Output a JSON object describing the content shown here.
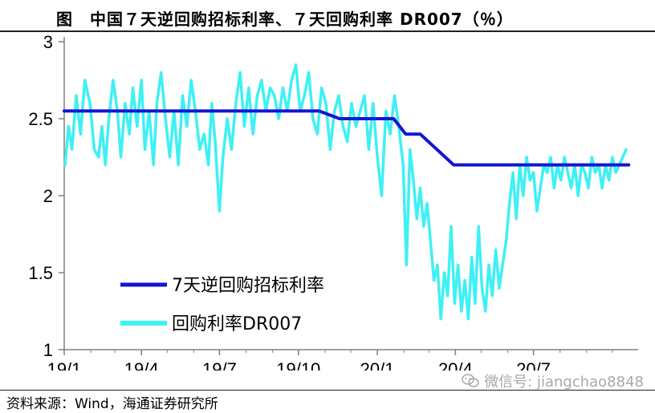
{
  "header": {
    "title": "图　中国７天逆回购招标利率、７天回购利率 DR007（％）"
  },
  "footer": {
    "source": "资料来源：Wind，海通证券研究所",
    "watermark": "微信号: jiangchao8848"
  },
  "colors": {
    "reverse_repo": "#1414d2",
    "dr007": "#3ff0f5",
    "axis": "#808080"
  },
  "chart_data": {
    "type": "line",
    "xlabel": "",
    "ylabel": "",
    "x_domain": [
      "2019-01-01",
      "2020-10-31"
    ],
    "ylim": [
      1,
      3
    ],
    "yticks": [
      "1",
      "1.5",
      "2",
      "2.5",
      "3"
    ],
    "xticks": [
      {
        "date": "2019-01-01",
        "label": "19/1"
      },
      {
        "date": "2019-04-01",
        "label": "19/4"
      },
      {
        "date": "2019-07-01",
        "label": "19/7"
      },
      {
        "date": "2019-10-01",
        "label": "19/10"
      },
      {
        "date": "2020-01-01",
        "label": "20/1"
      },
      {
        "date": "2020-04-01",
        "label": "20/4"
      },
      {
        "date": "2020-07-01",
        "label": "20/7"
      }
    ],
    "legend_position": "bottom-left",
    "series": [
      {
        "name": "7天逆回购招标利率",
        "points": [
          [
            "2019-01-01",
            2.55
          ],
          [
            "2019-10-25",
            2.55
          ],
          [
            "2019-11-18",
            2.5
          ],
          [
            "2020-01-20",
            2.5
          ],
          [
            "2020-02-03",
            2.4
          ],
          [
            "2020-02-20",
            2.4
          ],
          [
            "2020-03-30",
            2.2
          ],
          [
            "2020-10-20",
            2.2
          ]
        ]
      },
      {
        "name": "回购利率DR007",
        "points": [
          [
            "2019-01-02",
            2.2
          ],
          [
            "2019-01-06",
            2.45
          ],
          [
            "2019-01-10",
            2.3
          ],
          [
            "2019-01-15",
            2.65
          ],
          [
            "2019-01-20",
            2.4
          ],
          [
            "2019-01-25",
            2.75
          ],
          [
            "2019-01-31",
            2.6
          ],
          [
            "2019-02-05",
            2.3
          ],
          [
            "2019-02-10",
            2.25
          ],
          [
            "2019-02-14",
            2.45
          ],
          [
            "2019-02-18",
            2.2
          ],
          [
            "2019-02-22",
            2.5
          ],
          [
            "2019-02-27",
            2.75
          ],
          [
            "2019-03-04",
            2.55
          ],
          [
            "2019-03-08",
            2.25
          ],
          [
            "2019-03-13",
            2.6
          ],
          [
            "2019-03-18",
            2.4
          ],
          [
            "2019-03-22",
            2.7
          ],
          [
            "2019-03-27",
            2.45
          ],
          [
            "2019-04-01",
            2.75
          ],
          [
            "2019-04-05",
            2.3
          ],
          [
            "2019-04-10",
            2.55
          ],
          [
            "2019-04-15",
            2.2
          ],
          [
            "2019-04-19",
            2.6
          ],
          [
            "2019-04-24",
            2.8
          ],
          [
            "2019-04-29",
            2.5
          ],
          [
            "2019-05-04",
            2.25
          ],
          [
            "2019-05-09",
            2.55
          ],
          [
            "2019-05-14",
            2.2
          ],
          [
            "2019-05-19",
            2.65
          ],
          [
            "2019-05-24",
            2.45
          ],
          [
            "2019-05-29",
            2.75
          ],
          [
            "2019-06-03",
            2.55
          ],
          [
            "2019-06-08",
            2.3
          ],
          [
            "2019-06-13",
            2.4
          ],
          [
            "2019-06-18",
            2.2
          ],
          [
            "2019-06-22",
            2.6
          ],
          [
            "2019-06-26",
            2.35
          ],
          [
            "2019-07-01",
            1.9
          ],
          [
            "2019-07-05",
            2.25
          ],
          [
            "2019-07-10",
            2.5
          ],
          [
            "2019-07-15",
            2.3
          ],
          [
            "2019-07-20",
            2.6
          ],
          [
            "2019-07-25",
            2.8
          ],
          [
            "2019-07-30",
            2.45
          ],
          [
            "2019-08-04",
            2.7
          ],
          [
            "2019-08-09",
            2.4
          ],
          [
            "2019-08-14",
            2.65
          ],
          [
            "2019-08-19",
            2.75
          ],
          [
            "2019-08-24",
            2.55
          ],
          [
            "2019-08-29",
            2.7
          ],
          [
            "2019-09-03",
            2.65
          ],
          [
            "2019-09-08",
            2.5
          ],
          [
            "2019-09-13",
            2.7
          ],
          [
            "2019-09-18",
            2.55
          ],
          [
            "2019-09-23",
            2.75
          ],
          [
            "2019-09-28",
            2.85
          ],
          [
            "2019-10-03",
            2.55
          ],
          [
            "2019-10-08",
            2.65
          ],
          [
            "2019-10-13",
            2.8
          ],
          [
            "2019-10-18",
            2.5
          ],
          [
            "2019-10-23",
            2.4
          ],
          [
            "2019-10-28",
            2.7
          ],
          [
            "2019-11-02",
            2.6
          ],
          [
            "2019-11-07",
            2.3
          ],
          [
            "2019-11-12",
            2.55
          ],
          [
            "2019-11-17",
            2.65
          ],
          [
            "2019-11-22",
            2.45
          ],
          [
            "2019-11-27",
            2.35
          ],
          [
            "2019-12-02",
            2.6
          ],
          [
            "2019-12-07",
            2.45
          ],
          [
            "2019-12-12",
            2.55
          ],
          [
            "2019-12-17",
            2.65
          ],
          [
            "2019-12-22",
            2.3
          ],
          [
            "2019-12-27",
            2.6
          ],
          [
            "2020-01-01",
            2.25
          ],
          [
            "2020-01-06",
            2.0
          ],
          [
            "2020-01-11",
            2.55
          ],
          [
            "2020-01-16",
            2.4
          ],
          [
            "2020-01-21",
            2.65
          ],
          [
            "2020-01-26",
            2.45
          ],
          [
            "2020-01-31",
            2.2
          ],
          [
            "2020-02-04",
            1.55
          ],
          [
            "2020-02-08",
            2.3
          ],
          [
            "2020-02-12",
            2.1
          ],
          [
            "2020-02-16",
            1.85
          ],
          [
            "2020-02-20",
            2.05
          ],
          [
            "2020-02-24",
            1.8
          ],
          [
            "2020-02-28",
            1.95
          ],
          [
            "2020-03-03",
            1.7
          ],
          [
            "2020-03-07",
            1.45
          ],
          [
            "2020-03-11",
            1.55
          ],
          [
            "2020-03-15",
            1.2
          ],
          [
            "2020-03-19",
            1.5
          ],
          [
            "2020-03-23",
            1.35
          ],
          [
            "2020-03-27",
            1.8
          ],
          [
            "2020-03-31",
            1.3
          ],
          [
            "2020-04-04",
            1.55
          ],
          [
            "2020-04-08",
            1.25
          ],
          [
            "2020-04-12",
            1.45
          ],
          [
            "2020-04-16",
            1.2
          ],
          [
            "2020-04-20",
            1.6
          ],
          [
            "2020-04-24",
            1.3
          ],
          [
            "2020-04-28",
            1.8
          ],
          [
            "2020-05-02",
            1.4
          ],
          [
            "2020-05-06",
            1.25
          ],
          [
            "2020-05-10",
            1.55
          ],
          [
            "2020-05-14",
            1.35
          ],
          [
            "2020-05-18",
            1.65
          ],
          [
            "2020-05-22",
            1.4
          ],
          [
            "2020-05-26",
            1.55
          ],
          [
            "2020-05-30",
            1.7
          ],
          [
            "2020-06-03",
            1.95
          ],
          [
            "2020-06-07",
            2.15
          ],
          [
            "2020-06-11",
            1.85
          ],
          [
            "2020-06-15",
            2.2
          ],
          [
            "2020-06-19",
            2.0
          ],
          [
            "2020-06-23",
            2.25
          ],
          [
            "2020-06-27",
            2.1
          ],
          [
            "2020-07-01",
            2.15
          ],
          [
            "2020-07-05",
            1.9
          ],
          [
            "2020-07-09",
            2.05
          ],
          [
            "2020-07-13",
            2.2
          ],
          [
            "2020-07-17",
            2.15
          ],
          [
            "2020-07-21",
            2.25
          ],
          [
            "2020-07-25",
            2.05
          ],
          [
            "2020-07-29",
            2.2
          ],
          [
            "2020-08-02",
            2.1
          ],
          [
            "2020-08-06",
            2.25
          ],
          [
            "2020-08-10",
            2.15
          ],
          [
            "2020-08-14",
            2.05
          ],
          [
            "2020-08-18",
            2.2
          ],
          [
            "2020-08-22",
            2.0
          ],
          [
            "2020-08-26",
            2.2
          ],
          [
            "2020-08-30",
            2.15
          ],
          [
            "2020-09-03",
            2.05
          ],
          [
            "2020-09-07",
            2.25
          ],
          [
            "2020-09-11",
            2.15
          ],
          [
            "2020-09-15",
            2.2
          ],
          [
            "2020-09-19",
            2.05
          ],
          [
            "2020-09-23",
            2.2
          ],
          [
            "2020-09-27",
            2.1
          ],
          [
            "2020-10-01",
            2.25
          ],
          [
            "2020-10-05",
            2.15
          ],
          [
            "2020-10-09",
            2.2
          ],
          [
            "2020-10-13",
            2.25
          ],
          [
            "2020-10-17",
            2.3
          ]
        ]
      }
    ]
  }
}
